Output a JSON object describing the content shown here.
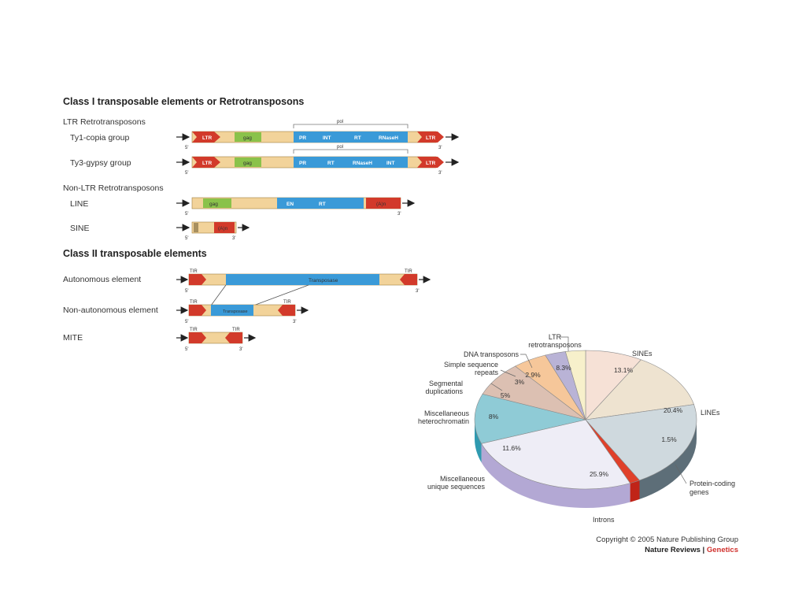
{
  "diagram": {
    "class1_title": "Class I transposable elements or Retrotransposons",
    "ltr_header": "LTR Retrotransposons",
    "ty1_label": "Ty1-copia group",
    "ty3_label": "Ty3-gypsy group",
    "nonltr_header": "Non-LTR Retrotransposons",
    "line_label": "LINE",
    "sine_label": "SINE",
    "class2_title": "Class II transposable elements",
    "auto_label": "Autonomous element",
    "nonauto_label": "Non-autonomous element",
    "mite_label": "MITE",
    "pol_label": "pol",
    "five_prime": "5'",
    "three_prime": "3'",
    "ltr": "LTR",
    "gag": "gag",
    "pr": "PR",
    "int": "INT",
    "rt": "RT",
    "rnaseh": "RNaseH",
    "en": "EN",
    "polya": "(A)n",
    "tir": "TIR",
    "transposase": "Transposase"
  },
  "chart_data": {
    "type": "pie",
    "title": "",
    "slices": [
      {
        "label": "LTR retrotransposons",
        "value": 8.3,
        "display": "8.3%",
        "color": "#f6e1d6"
      },
      {
        "label": "SINEs",
        "value": 13.1,
        "display": "13.1%",
        "color": "#eee3d0"
      },
      {
        "label": "LINEs",
        "value": 20.4,
        "display": "20.4%",
        "color": "#cfd9de"
      },
      {
        "label": "Protein-coding genes",
        "value": 1.5,
        "display": "1.5%",
        "color": "#e0402a"
      },
      {
        "label": "Introns",
        "value": 25.9,
        "display": "25.9%",
        "color": "#eeedf6"
      },
      {
        "label": "Miscellaneous unique sequences",
        "value": 11.6,
        "display": "11.6%",
        "color": "#8fcbd6"
      },
      {
        "label": "Miscellaneous heterochromatin",
        "value": 8,
        "display": "8%",
        "color": "#dcc0b2"
      },
      {
        "label": "Segmental duplications",
        "value": 5,
        "display": "5%",
        "color": "#f6c79a"
      },
      {
        "label": "Simple sequence repeats",
        "value": 3,
        "display": "3%",
        "color": "#b9b3d6"
      },
      {
        "label": "DNA transposons",
        "value": 2.9,
        "display": "2.9%",
        "color": "#f7f0cb"
      }
    ]
  },
  "pie_labels": {
    "ltr_1": "LTR",
    "ltr_2": "retrotransposons",
    "sines": "SINEs",
    "lines": "LINEs",
    "protein_1": "Protein-coding",
    "protein_2": "genes",
    "introns": "Introns",
    "unique_1": "Miscellaneous",
    "unique_2": "unique sequences",
    "hetero_1": "Miscellaneous",
    "hetero_2": "heterochromatin",
    "segdup_1": "Segmental",
    "segdup_2": "duplications",
    "ssr_1": "Simple sequence",
    "ssr_2": "repeats",
    "dna": "DNA transposons"
  },
  "credits": {
    "copyright": "Copyright © 2005 Nature Publishing Group",
    "journal": "Nature Reviews",
    "separator": " | ",
    "section": "Genetics"
  }
}
